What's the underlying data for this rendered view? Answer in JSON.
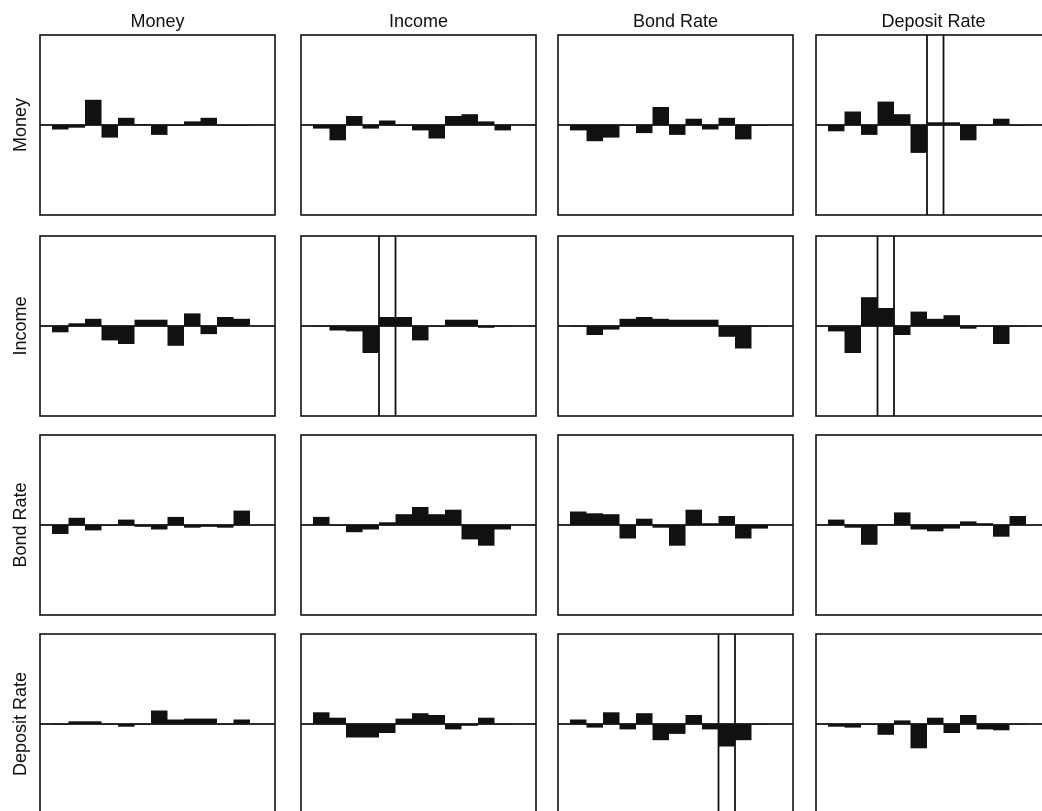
{
  "chart_data": {
    "type": "bar",
    "layout": "4x4 small multiples",
    "column_labels": [
      "Money",
      "Income",
      "Bond Rate",
      "Deposit Rate"
    ],
    "row_labels": [
      "Money",
      "Income",
      "Bond Rate",
      "Deposit Rate"
    ],
    "grid": false,
    "ylim": [
      -1,
      1
    ],
    "lags": 12,
    "panels": [
      {
        "row": 0,
        "col": 0,
        "values": [
          -0.05,
          -0.03,
          0.28,
          -0.14,
          0.08,
          0.01,
          -0.11,
          0.0,
          0.04,
          0.08,
          0.0,
          0.0
        ],
        "band": null
      },
      {
        "row": 0,
        "col": 1,
        "values": [
          -0.04,
          -0.17,
          0.1,
          -0.04,
          0.05,
          -0.01,
          -0.06,
          -0.15,
          0.1,
          0.12,
          0.04,
          -0.06
        ],
        "band": null
      },
      {
        "row": 0,
        "col": 2,
        "values": [
          -0.06,
          -0.18,
          -0.14,
          0.0,
          -0.09,
          0.2,
          -0.11,
          0.07,
          -0.05,
          0.08,
          -0.16,
          0.0
        ],
        "band": null
      },
      {
        "row": 0,
        "col": 3,
        "values": [
          -0.07,
          0.15,
          -0.11,
          0.26,
          0.12,
          -0.31,
          0.03,
          0.03,
          -0.17,
          0.0,
          0.07,
          0.0
        ],
        "band": {
          "start_lag": 6,
          "end_lag": 7
        }
      },
      {
        "row": 1,
        "col": 0,
        "values": [
          -0.07,
          0.03,
          0.08,
          -0.16,
          -0.2,
          0.07,
          0.07,
          -0.22,
          0.14,
          -0.09,
          0.1,
          0.08
        ],
        "band": null
      },
      {
        "row": 1,
        "col": 1,
        "values": [
          0.0,
          -0.05,
          -0.06,
          -0.3,
          0.1,
          0.1,
          -0.16,
          0.0,
          0.07,
          0.07,
          -0.02,
          0.0
        ],
        "band": {
          "start_lag": 4,
          "end_lag": 5
        }
      },
      {
        "row": 1,
        "col": 2,
        "values": [
          0.0,
          -0.1,
          -0.04,
          0.08,
          0.1,
          0.08,
          0.07,
          0.07,
          0.07,
          -0.12,
          -0.25,
          0.0
        ],
        "band": null
      },
      {
        "row": 1,
        "col": 3,
        "values": [
          -0.06,
          -0.3,
          0.32,
          0.2,
          -0.1,
          0.16,
          0.08,
          0.12,
          -0.03,
          0.0,
          -0.2,
          0.0
        ],
        "band": {
          "start_lag": 3,
          "end_lag": 4
        }
      },
      {
        "row": 2,
        "col": 0,
        "values": [
          -0.1,
          0.08,
          -0.06,
          0.0,
          0.06,
          -0.02,
          -0.05,
          0.09,
          -0.03,
          -0.02,
          -0.03,
          0.16
        ],
        "band": null
      },
      {
        "row": 2,
        "col": 1,
        "values": [
          0.09,
          0.0,
          -0.08,
          -0.05,
          0.03,
          0.12,
          0.2,
          0.12,
          0.17,
          -0.16,
          -0.23,
          -0.05
        ],
        "band": null
      },
      {
        "row": 2,
        "col": 2,
        "values": [
          0.15,
          0.13,
          0.12,
          -0.15,
          0.07,
          -0.03,
          -0.23,
          0.17,
          0.02,
          0.1,
          -0.15,
          -0.04
        ],
        "band": null
      },
      {
        "row": 2,
        "col": 3,
        "values": [
          0.06,
          -0.03,
          -0.22,
          0.01,
          0.14,
          -0.05,
          -0.07,
          -0.04,
          0.04,
          0.02,
          -0.13,
          0.1
        ],
        "band": null
      },
      {
        "row": 3,
        "col": 0,
        "values": [
          0.0,
          0.03,
          0.03,
          0.0,
          -0.03,
          0.0,
          0.15,
          0.05,
          0.06,
          0.06,
          0.0,
          0.05
        ],
        "band": null
      },
      {
        "row": 3,
        "col": 1,
        "values": [
          0.13,
          0.07,
          -0.15,
          -0.15,
          -0.1,
          0.06,
          0.12,
          0.1,
          -0.06,
          -0.02,
          0.07,
          0.0
        ],
        "band": null
      },
      {
        "row": 3,
        "col": 2,
        "values": [
          0.05,
          -0.04,
          0.13,
          -0.06,
          0.12,
          -0.18,
          -0.11,
          0.1,
          -0.06,
          -0.25,
          -0.18,
          0.0
        ],
        "band": {
          "start_lag": 9,
          "end_lag": 10
        }
      },
      {
        "row": 3,
        "col": 3,
        "values": [
          -0.03,
          -0.04,
          0.0,
          -0.12,
          0.04,
          -0.27,
          0.07,
          -0.1,
          0.1,
          -0.06,
          -0.07,
          0.0
        ],
        "band": null
      }
    ]
  }
}
